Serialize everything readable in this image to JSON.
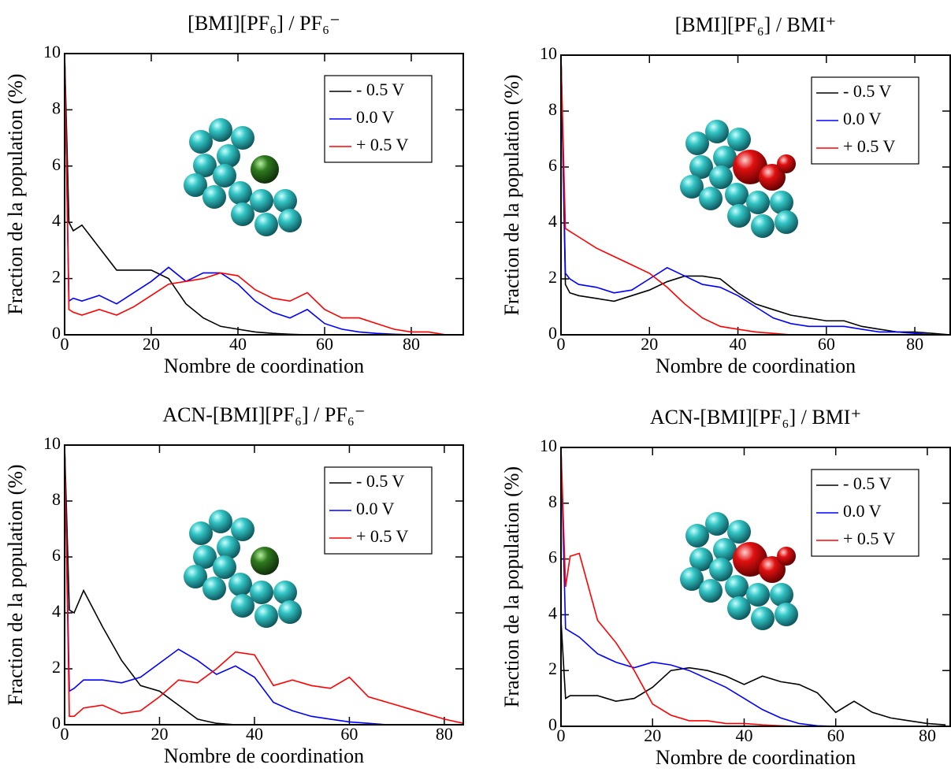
{
  "chart_data": [
    {
      "type": "line",
      "title": "[BMI][PF₆] / PF₆⁻",
      "xlabel": "Nombre de coordination",
      "ylabel": "Fraction de la population (%)",
      "x": [
        0,
        1,
        2,
        4,
        8,
        12,
        16,
        20,
        24,
        28,
        32,
        36,
        40,
        44,
        48,
        52,
        56,
        60,
        64,
        68,
        72,
        76,
        80,
        84,
        88
      ],
      "series": [
        {
          "name": "- 0.5 V",
          "color": "#000000",
          "values": [
            10,
            4.0,
            3.7,
            3.9,
            3.1,
            2.3,
            2.3,
            2.3,
            2.0,
            1.1,
            0.6,
            0.3,
            0.2,
            0.1,
            0.05,
            0.02,
            0,
            0,
            0,
            0,
            0,
            0,
            0,
            0,
            0
          ]
        },
        {
          "name": "0.0 V",
          "color": "#0000ff",
          "values": [
            10,
            1.2,
            1.3,
            1.2,
            1.4,
            1.1,
            1.5,
            1.9,
            2.4,
            1.9,
            2.2,
            2.2,
            1.8,
            1.2,
            0.8,
            0.6,
            0.9,
            0.4,
            0.2,
            0.1,
            0.05,
            0.02,
            0,
            0,
            0
          ]
        },
        {
          "name": "+ 0.5 V",
          "color": "#ff0000",
          "values": [
            10,
            0.9,
            0.8,
            0.7,
            0.9,
            0.7,
            1.0,
            1.4,
            1.8,
            1.9,
            2.0,
            2.2,
            2.1,
            1.6,
            1.3,
            1.2,
            1.5,
            0.9,
            0.6,
            0.6,
            0.4,
            0.2,
            0.1,
            0.1,
            0
          ]
        }
      ],
      "xlim": [
        0,
        92
      ],
      "ylim": [
        0,
        10
      ],
      "xticks": [
        0,
        20,
        40,
        60,
        80
      ],
      "yticks": [
        0,
        2,
        4,
        6,
        8,
        10
      ],
      "grid": false,
      "legend": "upper right"
    },
    {
      "type": "line",
      "title": "[BMI][PF₆] / BMI⁺",
      "xlabel": "Nombre de coordination",
      "ylabel": "Fraction de la population (%)",
      "x": [
        0,
        1,
        2,
        4,
        8,
        12,
        16,
        20,
        24,
        28,
        32,
        36,
        40,
        44,
        48,
        52,
        56,
        60,
        64,
        68,
        72,
        76,
        80,
        84,
        88
      ],
      "series": [
        {
          "name": "- 0.5 V",
          "color": "#000000",
          "values": [
            10,
            1.8,
            1.5,
            1.4,
            1.3,
            1.2,
            1.4,
            1.6,
            1.9,
            2.1,
            2.1,
            2.0,
            1.5,
            1.1,
            0.9,
            0.7,
            0.6,
            0.5,
            0.5,
            0.3,
            0.2,
            0.1,
            0.1,
            0.05,
            0
          ]
        },
        {
          "name": "0.0 V",
          "color": "#0000ff",
          "values": [
            10,
            2.2,
            2.0,
            1.8,
            1.7,
            1.5,
            1.6,
            2.0,
            2.4,
            2.1,
            1.8,
            1.7,
            1.4,
            1.0,
            0.6,
            0.4,
            0.3,
            0.3,
            0.3,
            0.2,
            0.1,
            0.1,
            0.05,
            0,
            0
          ]
        },
        {
          "name": "+ 0.5 V",
          "color": "#ff0000",
          "values": [
            10,
            3.8,
            3.7,
            3.5,
            3.1,
            2.8,
            2.5,
            2.2,
            1.7,
            1.1,
            0.6,
            0.3,
            0.2,
            0.1,
            0.05,
            0,
            0,
            0,
            0,
            0,
            0,
            0,
            0,
            0,
            0
          ]
        }
      ],
      "xlim": [
        0,
        88
      ],
      "ylim": [
        0,
        10
      ],
      "xticks": [
        0,
        20,
        40,
        60,
        80
      ],
      "yticks": [
        0,
        2,
        4,
        6,
        8,
        10
      ],
      "grid": false,
      "legend": "upper right"
    },
    {
      "type": "line",
      "title": "ACN-[BMI][PF₆] / PF₆⁻",
      "xlabel": "Nombre de coordination",
      "ylabel": "Fraction de la population (%)",
      "x": [
        0,
        1,
        2,
        4,
        8,
        12,
        16,
        20,
        24,
        28,
        32,
        36,
        40,
        44,
        48,
        52,
        56,
        60,
        64,
        68,
        72,
        76,
        80,
        84
      ],
      "series": [
        {
          "name": "- 0.5 V",
          "color": "#000000",
          "values": [
            10,
            4.1,
            4.0,
            4.8,
            3.5,
            2.3,
            1.4,
            1.2,
            0.7,
            0.2,
            0.05,
            0,
            0,
            0,
            0,
            0,
            0,
            0,
            0,
            0,
            0,
            0,
            0,
            0
          ]
        },
        {
          "name": "0.0 V",
          "color": "#0000ff",
          "values": [
            10,
            1.2,
            1.3,
            1.6,
            1.6,
            1.5,
            1.7,
            2.2,
            2.7,
            2.3,
            1.8,
            2.1,
            1.7,
            0.8,
            0.5,
            0.3,
            0.2,
            0.1,
            0.05,
            0,
            0,
            0,
            0,
            0
          ]
        },
        {
          "name": "+ 0.5 V",
          "color": "#ff0000",
          "values": [
            10,
            0.3,
            0.3,
            0.6,
            0.7,
            0.4,
            0.5,
            1.0,
            1.6,
            1.5,
            2.0,
            2.6,
            2.5,
            1.4,
            1.6,
            1.4,
            1.3,
            1.7,
            1.0,
            0.8,
            0.6,
            0.4,
            0.2,
            0.05
          ]
        }
      ],
      "xlim": [
        0,
        84
      ],
      "ylim": [
        0,
        10
      ],
      "xticks": [
        0,
        20,
        40,
        60,
        80
      ],
      "yticks": [
        0,
        2,
        4,
        6,
        8,
        10
      ],
      "grid": false,
      "legend": "upper right"
    },
    {
      "type": "line",
      "title": "ACN-[BMI][PF₆] / BMI⁺",
      "xlabel": "Nombre de coordination",
      "ylabel": "Fraction de la population (%)",
      "x": [
        0,
        1,
        2,
        4,
        8,
        12,
        16,
        20,
        24,
        28,
        32,
        36,
        40,
        44,
        48,
        52,
        56,
        60,
        64,
        68,
        72,
        76,
        80,
        84
      ],
      "series": [
        {
          "name": "- 0.5 V",
          "color": "#000000",
          "values": [
            3.8,
            1.0,
            1.1,
            1.1,
            1.1,
            0.9,
            1.0,
            1.4,
            2.0,
            2.1,
            2.0,
            1.8,
            1.5,
            1.8,
            1.6,
            1.5,
            1.2,
            0.5,
            0.9,
            0.5,
            0.3,
            0.2,
            0.1,
            0.05
          ]
        },
        {
          "name": "0.0 V",
          "color": "#0000ff",
          "values": [
            10,
            3.5,
            3.4,
            3.2,
            2.6,
            2.3,
            2.1,
            2.3,
            2.2,
            2.0,
            1.7,
            1.4,
            1.0,
            0.6,
            0.3,
            0.1,
            0.02,
            0,
            0,
            0,
            0,
            0,
            0,
            0
          ]
        },
        {
          "name": "+ 0.5 V",
          "color": "#ff0000",
          "values": [
            10,
            5.0,
            6.1,
            6.2,
            3.8,
            3.0,
            2.0,
            0.8,
            0.4,
            0.2,
            0.2,
            0.1,
            0.1,
            0.05,
            0.02,
            0,
            0,
            0,
            0,
            0,
            0,
            0,
            0,
            0
          ]
        }
      ],
      "xlim": [
        0,
        85
      ],
      "ylim": [
        0,
        10
      ],
      "xticks": [
        0,
        20,
        40,
        60,
        80
      ],
      "yticks": [
        0,
        2,
        4,
        6,
        8,
        10
      ],
      "grid": false,
      "legend": "upper right"
    }
  ]
}
